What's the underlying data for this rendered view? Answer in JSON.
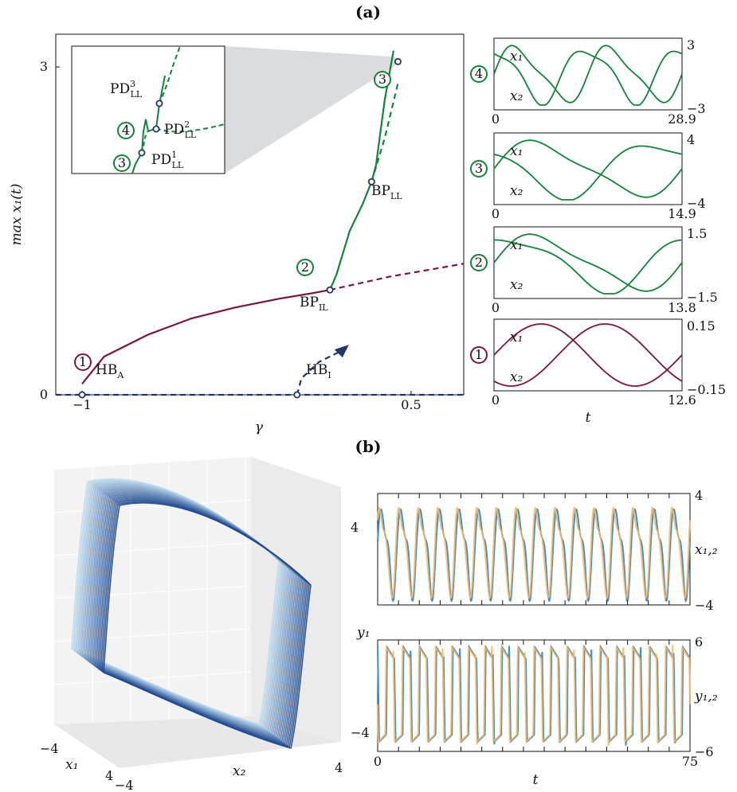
{
  "panels": {
    "a": "(a)",
    "b": "(b)"
  },
  "colors": {
    "green": "#12833a",
    "maroon": "#7b1636",
    "navy": "#22336e",
    "blue": "#3d8ecf",
    "orange": "#f7b55a",
    "inset_shade": "#d9dadb"
  },
  "chart_data": [
    {
      "type": "line",
      "panel": "a",
      "xlabel": "γ",
      "ylabel": "max x₁(t)",
      "xticks": [
        "−1",
        "0.5"
      ],
      "yticks": [
        "0",
        "3"
      ],
      "xlim": [
        -1.12,
        0.74
      ],
      "ylim": [
        0,
        3.3
      ],
      "series": [
        {
          "branch": "equilibrium",
          "color": "navy",
          "style": "dashed",
          "x": [
            -1.12,
            0.74
          ],
          "y": [
            0,
            0
          ]
        },
        {
          "branch": "IL-stable",
          "color": "maroon",
          "style": "solid",
          "x": [
            -1.0,
            -0.9,
            -0.7,
            -0.5,
            -0.3,
            -0.1,
            0.05,
            0.13
          ],
          "y": [
            0.1,
            0.35,
            0.55,
            0.7,
            0.8,
            0.88,
            0.93,
            0.96
          ]
        },
        {
          "branch": "IL-unstable",
          "color": "maroon",
          "style": "dashed",
          "x": [
            0.13,
            0.4,
            0.74
          ],
          "y": [
            0.96,
            1.08,
            1.2
          ]
        },
        {
          "branch": "LL-stable",
          "color": "green",
          "style": "solid",
          "x": [
            0.13,
            0.16,
            0.22,
            0.28,
            0.32,
            0.34,
            0.36,
            0.38,
            0.42
          ],
          "y": [
            0.96,
            1.1,
            1.5,
            1.75,
            1.95,
            2.1,
            2.4,
            2.7,
            3.15
          ]
        },
        {
          "branch": "LL-unstable",
          "color": "green",
          "style": "dashed",
          "x": [
            0.32,
            0.38,
            0.44
          ],
          "y": [
            1.95,
            2.35,
            2.85
          ]
        },
        {
          "branch": "HB_I-emanating",
          "color": "navy",
          "style": "dashed-arrow",
          "x": [
            -0.02,
            0.0,
            0.08,
            0.18
          ],
          "y": [
            0,
            0.15,
            0.3,
            0.4
          ]
        }
      ],
      "points": [
        {
          "id": "HB_A",
          "base": "HB",
          "sub": "A",
          "x": -1.0,
          "y": 0
        },
        {
          "id": "HB_I",
          "base": "HB",
          "sub": "I",
          "x": -0.02,
          "y": 0
        },
        {
          "id": "BP_IL",
          "base": "BP",
          "sub": "IL",
          "x": 0.13,
          "y": 0.96
        },
        {
          "id": "BP_LL",
          "base": "BP",
          "sub": "LL",
          "x": 0.32,
          "y": 1.95
        },
        {
          "id": "PD_top",
          "base": "",
          "sub": "",
          "x": 0.44,
          "y": 3.05
        }
      ],
      "markers": [
        {
          "n": "1",
          "color": "maroon"
        },
        {
          "n": "2",
          "color": "green"
        },
        {
          "n": "3",
          "color": "green"
        },
        {
          "n": "4",
          "color": "green"
        }
      ],
      "inset": {
        "points": [
          {
            "base": "PD",
            "sub": "LL",
            "sup": "1"
          },
          {
            "base": "PD",
            "sub": "LL",
            "sup": "2"
          },
          {
            "base": "PD",
            "sub": "LL",
            "sup": "3"
          }
        ],
        "markers": [
          {
            "n": "3"
          },
          {
            "n": "4"
          }
        ]
      }
    },
    {
      "type": "line",
      "panel": "a-timeseries",
      "xlabel": "t",
      "rows": [
        {
          "marker": "4",
          "color": "green",
          "tmax": "28.9",
          "tmin": "0",
          "ytop": "3",
          "ybot": "−3",
          "ylim": [
            -3,
            3
          ],
          "series": [
            {
              "name": "x₁",
              "period": 14.45,
              "phase": 0.0,
              "amp": 2.3
            },
            {
              "name": "x₂",
              "period": 14.45,
              "phase": 0.8,
              "amp": 2.3
            }
          ]
        },
        {
          "marker": "3",
          "color": "green",
          "tmax": "14.9",
          "tmin": "0",
          "ytop": "4",
          "ybot": "−4",
          "ylim": [
            -4,
            4
          ],
          "series": [
            {
              "name": "x₁",
              "period": 14.9,
              "phase": 0.0,
              "amp": 3.2
            },
            {
              "name": "x₂",
              "period": 14.9,
              "phase": 1.2,
              "amp": 3.2
            }
          ]
        },
        {
          "marker": "2",
          "color": "green",
          "tmax": "13.8",
          "tmin": "0",
          "ytop": "1.5",
          "ybot": "−1.5",
          "ylim": [
            -1.5,
            1.5
          ],
          "series": [
            {
              "name": "x₁",
              "period": 13.8,
              "phase": 0.0,
              "amp": 1.1
            },
            {
              "name": "x₂",
              "period": 13.8,
              "phase": 0.5,
              "amp": 1.1
            }
          ]
        },
        {
          "marker": "1",
          "color": "maroon",
          "tmax": "12.6",
          "tmin": "0",
          "ytop": "0.15",
          "ybot": "−0.15",
          "ylim": [
            -0.15,
            0.15
          ],
          "series": [
            {
              "name": "x₁",
              "period": 12.6,
              "phase": 0.0,
              "amp": 0.12
            },
            {
              "name": "x₂",
              "period": 12.6,
              "phase": 0.5,
              "amp": 0.12
            }
          ]
        }
      ]
    },
    {
      "type": "line",
      "panel": "b-3d",
      "axes": {
        "x1": "x₁",
        "x2": "x₂",
        "y1": "y₁"
      },
      "ticks": {
        "x1": [
          "−4",
          "4"
        ],
        "x2": [
          "−4",
          "4"
        ],
        "y1": [
          "−4",
          "4"
        ]
      }
    },
    {
      "type": "line",
      "panel": "b-timeseries",
      "xlabel": "t",
      "xticks": [
        "0",
        "75"
      ],
      "xlim": [
        0,
        75
      ],
      "rows": [
        {
          "ylabel": "x₁,₂",
          "ylim": [
            -4,
            4
          ],
          "yticks": [
            "4",
            "−4"
          ],
          "cycles": 16,
          "series": [
            {
              "color": "blue"
            },
            {
              "color": "orange"
            }
          ]
        },
        {
          "ylabel": "y₁,₂",
          "ylim": [
            -6,
            6
          ],
          "yticks": [
            "6",
            "−6"
          ],
          "cycles": 19,
          "series": [
            {
              "color": "blue"
            },
            {
              "color": "orange"
            }
          ]
        }
      ]
    }
  ]
}
